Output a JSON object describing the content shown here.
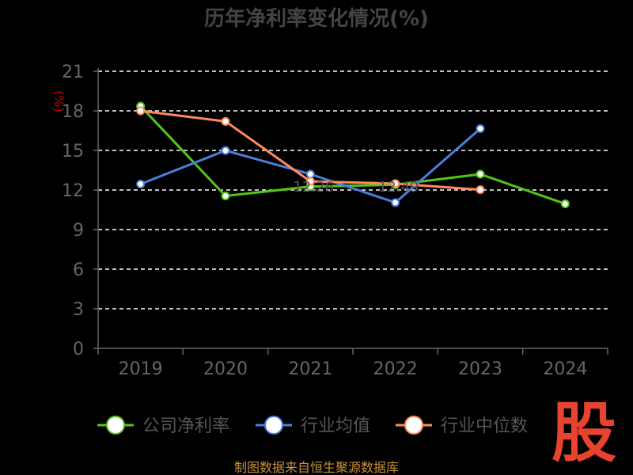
{
  "chart_data": {
    "type": "line",
    "title": "历年净利率变化情况(%)",
    "ylabel": "(%)",
    "xlabel": "",
    "categories": [
      "2019",
      "2020",
      "2021",
      "2022",
      "2023",
      "2024"
    ],
    "ylim": [
      0,
      21
    ],
    "yticks": [
      0,
      3,
      6,
      9,
      12,
      15,
      18,
      21
    ],
    "grid": true,
    "legend_position": "bottom",
    "series": [
      {
        "name": "公司净利率",
        "color": "#52c41a",
        "values": [
          18.35,
          11.55,
          12.26,
          12.4,
          13.2,
          10.95
        ]
      },
      {
        "name": "行业均值",
        "color": "#4a7fdc",
        "values": [
          12.45,
          14.99,
          13.2,
          11.05,
          16.65,
          null
        ]
      },
      {
        "name": "行业中位数",
        "color": "#ff8a5b",
        "values": [
          18.0,
          17.2,
          12.65,
          12.49,
          12.02,
          null
        ]
      }
    ],
    "annotations": [
      "12.26",
      "12.49"
    ]
  },
  "watermark": "股",
  "footer": {
    "source": "制图数据来自恒生聚源数据库"
  },
  "colors": {
    "background": "#000000",
    "axis": "#666666",
    "grid": "#ffffff",
    "tick": "#666666",
    "title": "#444444",
    "ylabel": "#cc0000",
    "watermark": "#e8432e",
    "footer": "#c8903a"
  }
}
